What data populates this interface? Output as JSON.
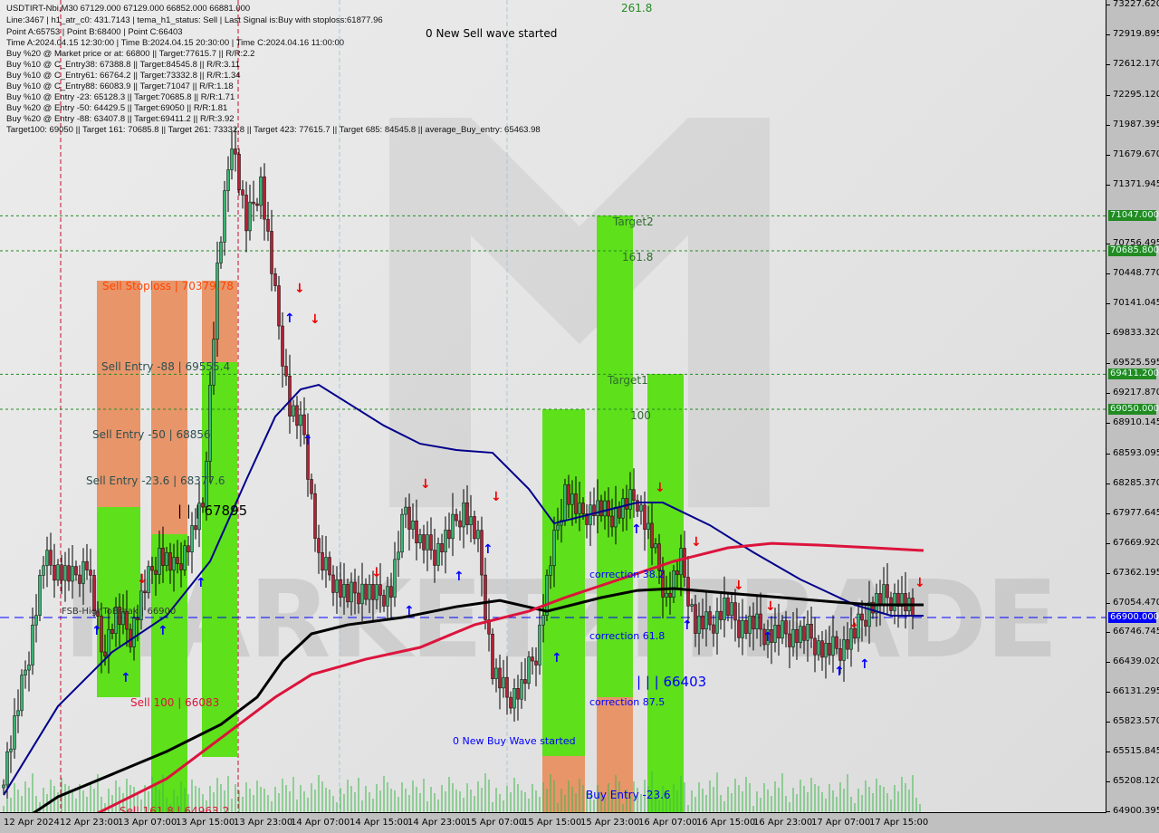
{
  "header": {
    "line1": "USDTIRT-Nbi,M30  67129.000 67129.000 66852.000 66881.000",
    "line2": "Line:3467 | h1_atr_c0: 431.7143 | tema_h1_status: Sell | Last Signal is:Buy with stoploss:61877.96",
    "line3": "Point A:65753 | Point B:68400 | Point C:66403",
    "line4": "Time A:2024.04.15 12:30:00 | Time B:2024.04.15 20:30:00 | Time C:2024.04.16 11:00:00",
    "line5": "Buy %20 @ Market price or at: 66800 || Target:77615.7 || R/R:2.2",
    "line6": "Buy %10 @ C_Entry38: 67388.8 || Target:84545.8 || R/R:3.11",
    "line7": "Buy %10 @ C_Entry61: 66764.2 || Target:73332.8 || R/R:1.34",
    "line8": "Buy %10 @ C_Entry88: 66083.9 || Target:71047 || R/R:1.18",
    "line9": "Buy %10 @ Entry -23: 65128.3 || Target:70685.8 || R/R:1.71",
    "line10": "Buy %20 @ Entry -50: 64429.5 || Target:69050 || R/R:1.81",
    "line11": "Buy %20 @ Entry -88: 63407.8 || Target:69411.2 || R/R:3.92",
    "line12": "Target100: 69050 || Target 161: 70685.8 || Target 261: 73332.8 || Target 423: 77615.7 || Target 685: 84545.8 || average_Buy_entry: 65463.98"
  },
  "annotations": {
    "sell_wave": "0 New Sell wave started",
    "buy_wave": "0 New Buy Wave started",
    "sell_stoploss": "Sell Stoploss | 70379.78",
    "sell_entry_88": "Sell Entry -88 | 69555.4",
    "sell_entry_50": "Sell Entry -50 | 68856",
    "sell_entry_23": "Sell Entry -23.6 | 68377.6",
    "sell_level_67895": "| | | 67895",
    "fsb": "FSB-HighToBreak | 66900",
    "sell_100": "Sell 100 | 66083",
    "sell_161": "Sell 161.8 | 64963.2",
    "target2": "Target2",
    "fib_161": "161.8",
    "target1": "Target1",
    "fib_100": "100",
    "corr_38": "correction 38.2",
    "corr_61": "correction 61.8",
    "corr_87": "correction 87.5",
    "level_66403": "| | | 66403",
    "buy_entry": "Buy Entry -23.6",
    "top_cut": "261.8"
  },
  "watermark": "MARKETZITRADE",
  "colors": {
    "up_candle": "#3cb371",
    "down_candle": "#b22234",
    "ma_fast": "#00008b",
    "ma_mid": "#000000",
    "ma_slow": "#dc143c",
    "zone_green": "#5ee01a",
    "zone_orange": "#e8956a",
    "level_green": "#228b22",
    "current": "#0000ff"
  },
  "chart_data": {
    "type": "candlestick",
    "symbol": "USDTIRT-Nbi",
    "timeframe": "M30",
    "ylim": [
      64900.395,
      73227.62
    ],
    "y_ticks": [
      "73227.620",
      "72919.895",
      "72612.170",
      "72295.120",
      "71987.395",
      "71679.670",
      "71371.945",
      "70756.495",
      "70448.770",
      "70141.045",
      "69833.320",
      "69525.595",
      "69217.870",
      "68910.145",
      "68593.095",
      "68285.370",
      "67977.645",
      "67669.920",
      "67362.195",
      "67054.470",
      "66746.745",
      "66439.020",
      "66131.295",
      "65823.570",
      "65515.845",
      "65208.120",
      "64900.395"
    ],
    "y_tick_values": [
      73227.62,
      72919.895,
      72612.17,
      72295.12,
      71987.395,
      71679.67,
      71371.945,
      70756.495,
      70448.77,
      70141.045,
      69833.32,
      69525.595,
      69217.87,
      68910.145,
      68593.095,
      68285.37,
      67977.645,
      67669.92,
      67362.195,
      67054.47,
      66746.745,
      66439.02,
      66131.295,
      65823.57,
      65515.845,
      65208.12,
      64900.395
    ],
    "x_ticks": [
      "12 Apr 2024",
      "12 Apr 23:00",
      "13 Apr 07:00",
      "13 Apr 15:00",
      "13 Apr 23:00",
      "14 Apr 07:00",
      "14 Apr 15:00",
      "14 Apr 23:00",
      "15 Apr 07:00",
      "15 Apr 15:00",
      "15 Apr 23:00",
      "16 Apr 07:00",
      "16 Apr 15:00",
      "16 Apr 23:00",
      "17 Apr 07:00",
      "17 Apr 15:00"
    ],
    "levels": [
      {
        "label": "71047.000",
        "value": 71047
      },
      {
        "label": "70685.800",
        "value": 70685.8
      },
      {
        "label": "69411.200",
        "value": 69411.2
      },
      {
        "label": "69050.000",
        "value": 69050
      }
    ],
    "current_price": {
      "label": "66900.000",
      "value": 66900
    },
    "close_every_4_bars": [
      65143,
      65797,
      66545,
      67480,
      67400,
      67293,
      67480,
      66545,
      66919,
      66732,
      67200,
      67573,
      67386,
      67666,
      68040,
      70470,
      71872,
      70937,
      71405,
      70190,
      69068,
      68788,
      67480,
      67293,
      67106,
      67200,
      67106,
      67200,
      68040,
      67666,
      67573,
      67760,
      68040,
      67666,
      66358,
      66077,
      66171,
      66545,
      67480,
      68227,
      67947,
      68040,
      67947,
      68040,
      68133,
      67666,
      67106,
      67480,
      66826,
      66826,
      67013,
      66826,
      66826,
      66732,
      66732,
      66732,
      66686,
      66545,
      66592,
      66732,
      67013,
      67106,
      67106,
      66919
    ],
    "series": [
      {
        "color": "#00008b",
        "bars": [
          0,
          15,
          30,
          45,
          57,
          67,
          75,
          82,
          87,
          95,
          105,
          115,
          125,
          135,
          145,
          152,
          160,
          175,
          182,
          195,
          207,
          220,
          235,
          245,
          254
        ],
        "values": [
          65068,
          65984,
          66545,
          66919,
          67480,
          68321,
          68975,
          69255,
          69302,
          69115,
          68881,
          68694,
          68629,
          68601,
          68227,
          67872,
          67947,
          68087,
          68087,
          67853,
          67573,
          67293,
          67031,
          66919,
          66919
        ]
      },
      {
        "color": "#000000",
        "bars": [
          0,
          15,
          30,
          45,
          60,
          70,
          77,
          85,
          95,
          110,
          125,
          137,
          150,
          165,
          175,
          185,
          200,
          215,
          230,
          240,
          254
        ],
        "values": [
          64676,
          65050,
          65283,
          65517,
          65797,
          66078,
          66452,
          66732,
          66825,
          66900,
          67012,
          67077,
          66965,
          67106,
          67180,
          67199,
          67152,
          67106,
          67059,
          67031,
          67031
        ]
      },
      {
        "color": "#dc143c",
        "bars": [
          25,
          45,
          65,
          75,
          85,
          100,
          115,
          130,
          145,
          155,
          170,
          185,
          200,
          212,
          225,
          240,
          254
        ],
        "values": [
          64863,
          65236,
          65797,
          66078,
          66311,
          66470,
          66592,
          66825,
          66965,
          67106,
          67293,
          67480,
          67620,
          67666,
          67648,
          67620,
          67592
        ]
      }
    ]
  }
}
